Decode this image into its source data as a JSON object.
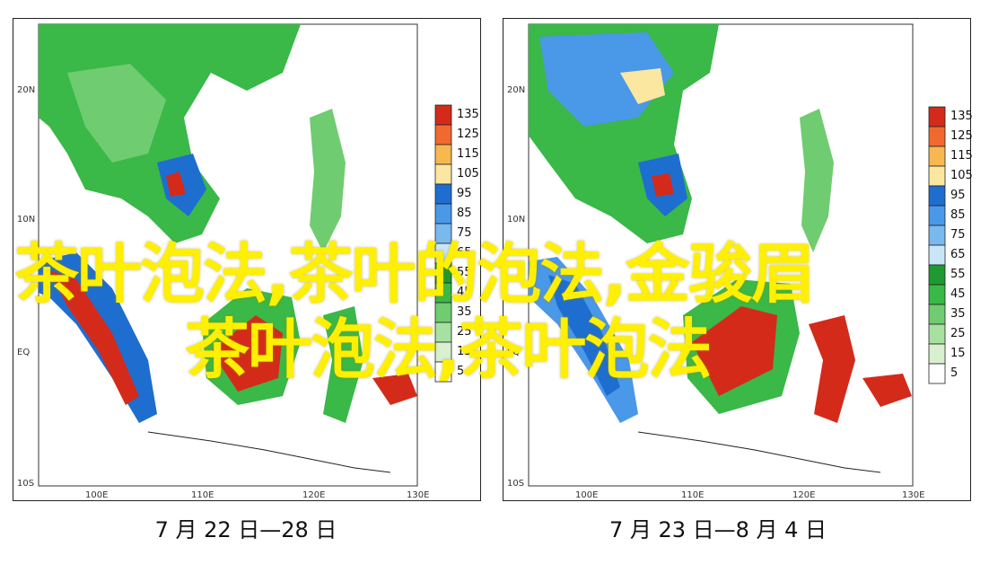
{
  "overlay": {
    "line1": "茶叶泡法,茶叶的泡法,金骏眉",
    "line2": "茶叶泡法,茶叶泡法"
  },
  "legend": {
    "levels": [
      "135",
      "125",
      "115",
      "105",
      "95",
      "85",
      "75",
      "65",
      "55",
      "45",
      "35",
      "25",
      "15",
      "5"
    ],
    "colors": [
      "#d42a1a",
      "#f06a30",
      "#f7b850",
      "#fbe7a0",
      "#1e6ed0",
      "#4a98e8",
      "#7ab8f0",
      "#c8e6f8",
      "#1e9a30",
      "#3ab848",
      "#70cc70",
      "#a8e0a0",
      "#d8f0d0",
      "#ffffff"
    ]
  },
  "panels": [
    {
      "caption": "7 月 22 日—28 日",
      "lat_labels": [
        "20N",
        "10N",
        "EQ",
        "10S"
      ],
      "lon_labels": [
        "100E",
        "110E",
        "120E",
        "130E"
      ]
    },
    {
      "caption": "7 月 23 日—8 月 4 日",
      "lat_labels": [
        "20N",
        "10N",
        "EQ",
        "10S"
      ],
      "lon_labels": [
        "100E",
        "110E",
        "120E",
        "130E"
      ]
    }
  ]
}
